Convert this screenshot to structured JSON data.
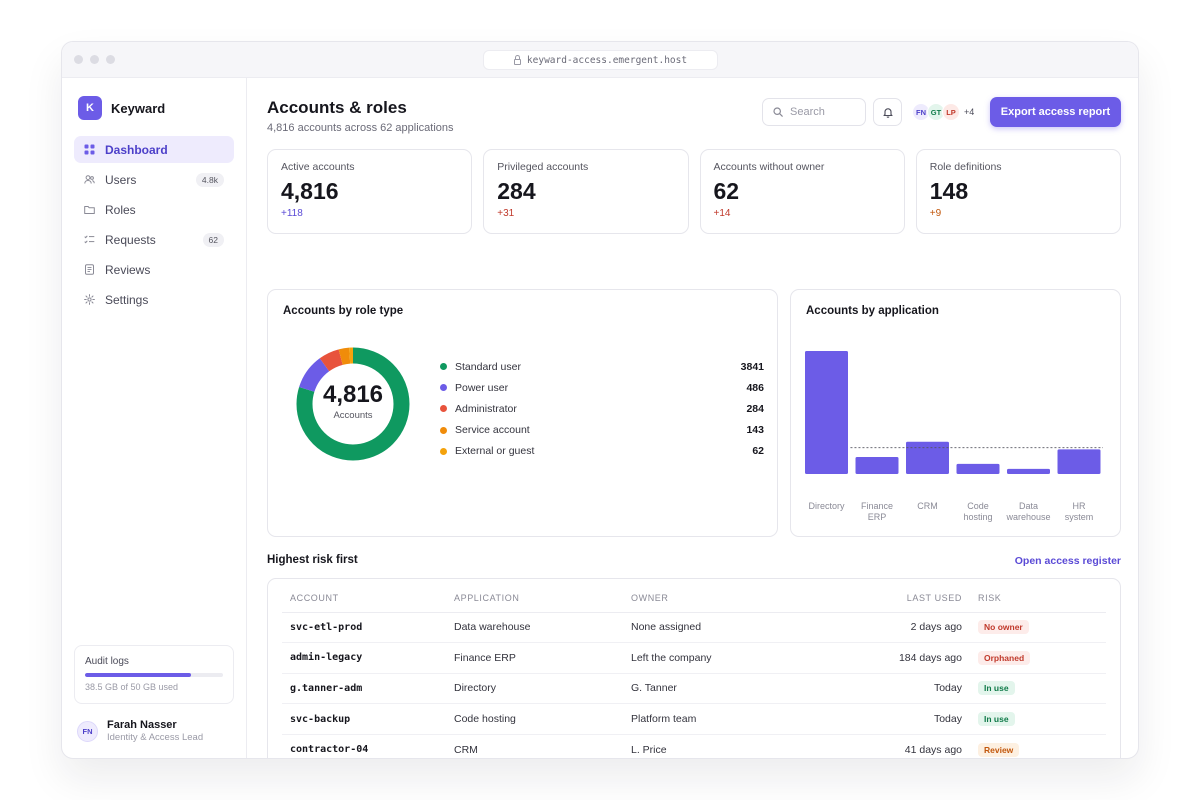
{
  "browser": {
    "url": "keyward-access.emergent.host"
  },
  "brand": {
    "logo_letter": "K",
    "name": "Keyward"
  },
  "sidebar": {
    "items": [
      {
        "label": "Dashboard",
        "icon": "grid-icon",
        "active": true,
        "badge": ""
      },
      {
        "label": "Users",
        "icon": "users-icon",
        "active": false,
        "badge": "4.8k"
      },
      {
        "label": "Roles",
        "icon": "folder-icon",
        "active": false,
        "badge": ""
      },
      {
        "label": "Requests",
        "icon": "checklist-icon",
        "active": false,
        "badge": "62"
      },
      {
        "label": "Reviews",
        "icon": "document-icon",
        "active": false,
        "badge": ""
      },
      {
        "label": "Settings",
        "icon": "gear-icon",
        "active": false,
        "badge": ""
      }
    ],
    "storage": {
      "title": "Audit logs",
      "used_fraction": 0.77,
      "text": "38.5 GB of 50 GB used"
    },
    "user": {
      "initials": "FN",
      "name": "Farah Nasser",
      "role": "Identity & Access Lead"
    }
  },
  "header": {
    "title": "Accounts & roles",
    "subtitle": "4,816 accounts across 62 applications",
    "search_placeholder": "Search",
    "team": [
      {
        "initials": "FN",
        "bg": "#eeebfd",
        "fg": "#4c3fc9"
      },
      {
        "initials": "GT",
        "bg": "#e3f5ec",
        "fg": "#0f7a48"
      },
      {
        "initials": "LP",
        "bg": "#fde9e6",
        "fg": "#c0392b"
      }
    ],
    "team_more": "+4",
    "export_label": "Export access report"
  },
  "kpis": [
    {
      "label": "Active accounts",
      "value": "4,816",
      "delta": "+118",
      "delta_color": "#5a4ad6"
    },
    {
      "label": "Privileged accounts",
      "value": "284",
      "delta": "+31",
      "delta_color": "#c0392b"
    },
    {
      "label": "Accounts without owner",
      "value": "62",
      "delta": "+14",
      "delta_color": "#c0392b"
    },
    {
      "label": "Role definitions",
      "value": "148",
      "delta": "+9",
      "delta_color": "#c2570c"
    }
  ],
  "role_chart": {
    "title": "Accounts by role type",
    "center_value": "4,816",
    "center_caption": "Accounts",
    "segments": [
      {
        "name": "Standard user",
        "value": 3841,
        "color": "#0f9960"
      },
      {
        "name": "Power user",
        "value": 486,
        "color": "#6c5ce7"
      },
      {
        "name": "Administrator",
        "value": 284,
        "color": "#e8533c"
      },
      {
        "name": "Service account",
        "value": 143,
        "color": "#f08c0a"
      },
      {
        "name": "External or guest",
        "value": 62,
        "color": "#f4a20c"
      }
    ]
  },
  "chart_data": {
    "type": "bar",
    "title": "Accounts by application",
    "categories": [
      "Directory",
      "Finance ERP",
      "CRM",
      "Code hosting",
      "Data warehouse",
      "HR system"
    ],
    "values": [
      1450,
      200,
      380,
      120,
      60,
      290
    ],
    "reference_line": 310,
    "ylim": [
      0,
      1450
    ],
    "bar_color": "#6c5ce7",
    "grid": false,
    "legend": "none"
  },
  "risk_section": {
    "title": "Highest risk first",
    "link_label": "Open access register"
  },
  "table": {
    "columns": [
      "ACCOUNT",
      "APPLICATION",
      "OWNER",
      "LAST USED",
      "RISK"
    ],
    "rows": [
      {
        "account": "svc-etl-prod",
        "application": "Data warehouse",
        "owner": "None assigned",
        "last_used": "2 days ago",
        "risk": "No owner",
        "risk_bg": "#fdecea",
        "risk_fg": "#c0392b"
      },
      {
        "account": "admin-legacy",
        "application": "Finance ERP",
        "owner": "Left the company",
        "last_used": "184 days ago",
        "risk": "Orphaned",
        "risk_bg": "#fdecea",
        "risk_fg": "#c0392b"
      },
      {
        "account": "g.tanner-adm",
        "application": "Directory",
        "owner": "G. Tanner",
        "last_used": "Today",
        "risk": "In use",
        "risk_bg": "#e3f5ec",
        "risk_fg": "#0f7a48"
      },
      {
        "account": "svc-backup",
        "application": "Code hosting",
        "owner": "Platform team",
        "last_used": "Today",
        "risk": "In use",
        "risk_bg": "#e3f5ec",
        "risk_fg": "#0f7a48"
      },
      {
        "account": "contractor-04",
        "application": "CRM",
        "owner": "L. Price",
        "last_used": "41 days ago",
        "risk": "Review",
        "risk_bg": "#fdf0e1",
        "risk_fg": "#c2570c"
      }
    ]
  }
}
